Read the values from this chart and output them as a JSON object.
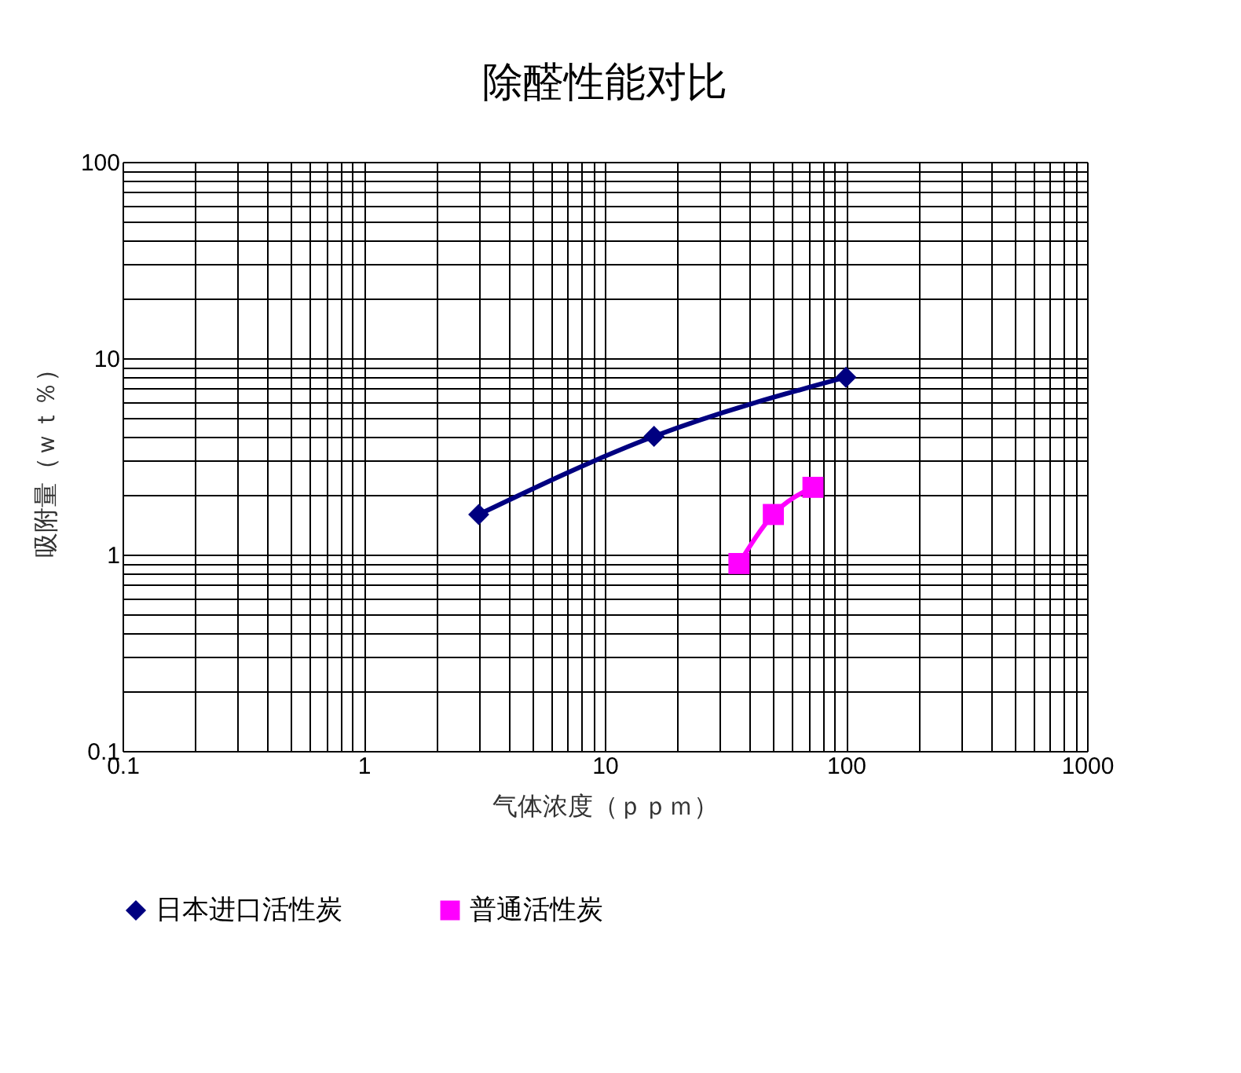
{
  "chart_data": {
    "type": "line",
    "title": "除醛性能对比",
    "xlabel": "气体浓度（ｐｐｍ）",
    "ylabel": "吸附量（ｗｔ％）",
    "log": "xy",
    "grid": true,
    "legend": "bottom",
    "xlim": [
      0.1,
      1000
    ],
    "ylim": [
      0.1,
      100
    ],
    "xticks": [
      0.1,
      {
        "value": 0.2,
        "label": null
      },
      {
        "value": 0.3,
        "label": null
      },
      {
        "value": 0.4,
        "label": null
      },
      {
        "value": 0.5,
        "label": null
      },
      {
        "value": 0.6,
        "label": null
      },
      {
        "value": 0.7,
        "label": null
      },
      {
        "value": 0.8,
        "label": null
      },
      {
        "value": 0.9,
        "label": null
      },
      1,
      {
        "value": 2,
        "label": null
      },
      {
        "value": 3,
        "label": null
      },
      {
        "value": 4,
        "label": null
      },
      {
        "value": 5,
        "label": null
      },
      {
        "value": 6,
        "label": null
      },
      {
        "value": 7,
        "label": null
      },
      {
        "value": 8,
        "label": null
      },
      {
        "value": 9,
        "label": null
      },
      10,
      {
        "value": 20,
        "label": null
      },
      {
        "value": 30,
        "label": null
      },
      {
        "value": 40,
        "label": null
      },
      {
        "value": 50,
        "label": null
      },
      {
        "value": 60,
        "label": null
      },
      {
        "value": 70,
        "label": null
      },
      {
        "value": 80,
        "label": null
      },
      {
        "value": 90,
        "label": null
      },
      100,
      {
        "value": 200,
        "label": null
      },
      {
        "value": 300,
        "label": null
      },
      {
        "value": 400,
        "label": null
      },
      {
        "value": 500,
        "label": null
      },
      {
        "value": 600,
        "label": null
      },
      {
        "value": 700,
        "label": null
      },
      {
        "value": 800,
        "label": null
      },
      {
        "value": 900,
        "label": null
      },
      1000
    ],
    "yticks": [
      0.1,
      {
        "value": 0.2,
        "label": null
      },
      {
        "value": 0.3,
        "label": null
      },
      {
        "value": 0.4,
        "label": null
      },
      {
        "value": 0.5,
        "label": null
      },
      {
        "value": 0.6,
        "label": null
      },
      {
        "value": 0.7,
        "label": null
      },
      {
        "value": 0.8,
        "label": null
      },
      {
        "value": 0.9,
        "label": null
      },
      1,
      {
        "value": 2,
        "label": null
      },
      {
        "value": 3,
        "label": null
      },
      {
        "value": 4,
        "label": null
      },
      {
        "value": 5,
        "label": null
      },
      {
        "value": 6,
        "label": null
      },
      {
        "value": 7,
        "label": null
      },
      {
        "value": 8,
        "label": null
      },
      {
        "value": 9,
        "label": null
      },
      10,
      {
        "value": 20,
        "label": null
      },
      {
        "value": 30,
        "label": null
      },
      {
        "value": 40,
        "label": null
      },
      {
        "value": 50,
        "label": null
      },
      {
        "value": 60,
        "label": null
      },
      {
        "value": 70,
        "label": null
      },
      {
        "value": 80,
        "label": null
      },
      {
        "value": 90,
        "label": null
      },
      100
    ],
    "series": [
      {
        "name": "日本进口活性炭",
        "color": "#000080",
        "marker": "diamond",
        "x": [
          3,
          16,
          100
        ],
        "values": [
          1.6,
          4,
          8
        ]
      },
      {
        "name": "普通活性炭",
        "color": "#ff00ff",
        "marker": "square",
        "x": [
          36,
          50,
          73
        ],
        "values": [
          0.9,
          1.6,
          2.2
        ]
      }
    ]
  }
}
